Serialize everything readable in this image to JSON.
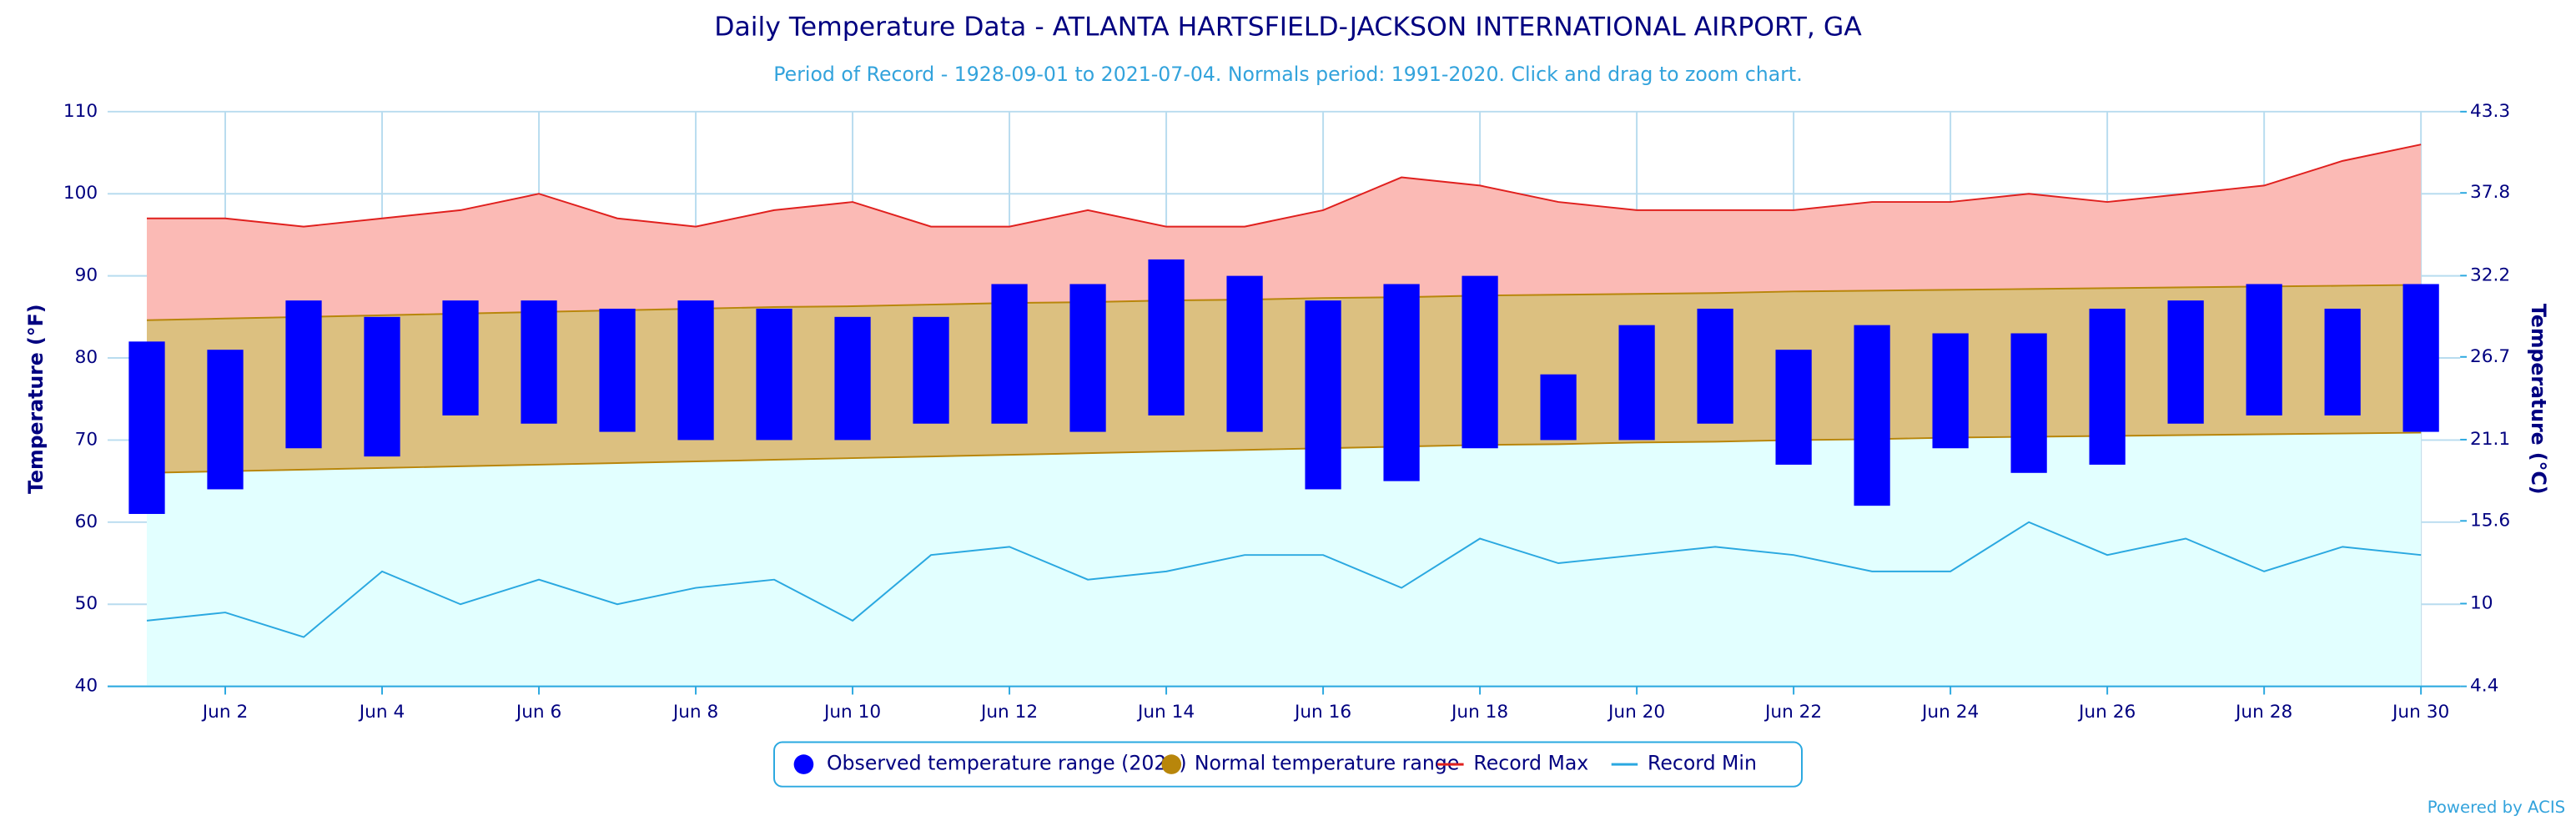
{
  "chart_data": {
    "type": "combo",
    "title": "Daily Temperature Data - ATLANTA HARTSFIELD-JACKSON INTERNATIONAL AIRPORT, GA",
    "subtitle": "Period of Record - 1928-09-01 to 2021-07-04. Normals period: 1991-2020. Click and drag to zoom chart.",
    "y_label": "Temperature (°F)",
    "y2_label": "Temperature (°C)",
    "credit": "Powered by ACIS",
    "grid": true,
    "categories": [
      null,
      "Jun 2",
      null,
      "Jun 4",
      null,
      "Jun 6",
      null,
      "Jun 8",
      null,
      "Jun 10",
      null,
      "Jun 12",
      null,
      "Jun 14",
      null,
      "Jun 16",
      null,
      "Jun 18",
      null,
      "Jun 20",
      null,
      "Jun 22",
      null,
      "Jun 24",
      null,
      "Jun 26",
      null,
      "Jun 28",
      null,
      "Jun 30"
    ],
    "ylim": [
      40,
      110
    ],
    "yticks": [
      40,
      50,
      60,
      70,
      80,
      90,
      100,
      110
    ],
    "y2lim": [
      4.4,
      43.3
    ],
    "y2ticks": [
      4.4,
      10,
      15.6,
      21.1,
      26.7,
      32.2,
      37.8,
      43.3
    ],
    "series": [
      {
        "name": "Record Max",
        "type": "line",
        "color": "#e0201e",
        "fill": "#fbbab5",
        "values": [
          97,
          97,
          96,
          97,
          98,
          100,
          97,
          96,
          98,
          99,
          96,
          96,
          98,
          96,
          96,
          98,
          102,
          101,
          99,
          98,
          98,
          98,
          99,
          99,
          100,
          99,
          100,
          101,
          104,
          106
        ]
      },
      {
        "name": "Normal temperature range",
        "type": "range_area",
        "color": "#b8860b",
        "fill": "#dcc080",
        "fill_below": "#e2ffff",
        "low": [
          66.0,
          66.2,
          66.4,
          66.6,
          66.8,
          67.0,
          67.2,
          67.4,
          67.6,
          67.8,
          68.0,
          68.2,
          68.4,
          68.6,
          68.8,
          69.0,
          69.2,
          69.4,
          69.5,
          69.7,
          69.8,
          70.0,
          70.1,
          70.3,
          70.4,
          70.5,
          70.6,
          70.7,
          70.8,
          70.9
        ],
        "high": [
          84.6,
          84.8,
          85.0,
          85.2,
          85.4,
          85.6,
          85.8,
          86.0,
          86.2,
          86.3,
          86.5,
          86.7,
          86.8,
          87.0,
          87.1,
          87.3,
          87.4,
          87.6,
          87.7,
          87.8,
          87.9,
          88.1,
          88.2,
          88.3,
          88.4,
          88.5,
          88.6,
          88.7,
          88.8,
          88.9
        ]
      },
      {
        "name": "Record Min",
        "type": "line",
        "color": "#2aa8e0",
        "values": [
          48,
          49,
          46,
          54,
          50,
          53,
          50,
          52,
          53,
          48,
          56,
          57,
          53,
          54,
          56,
          56,
          52,
          58,
          55,
          56,
          57,
          56,
          54,
          54,
          60,
          56,
          58,
          54,
          57,
          56
        ]
      },
      {
        "name": "Observed temperature range (2021)",
        "type": "range_bar",
        "color": "#0000ff",
        "low": [
          61,
          64,
          69,
          68,
          73,
          72,
          71,
          70,
          70,
          70,
          72,
          72,
          71,
          73,
          71,
          64,
          65,
          69,
          70,
          70,
          72,
          67,
          62,
          69,
          66,
          67,
          72,
          73,
          73,
          71
        ],
        "high": [
          82,
          81,
          87,
          85,
          87,
          87,
          86,
          87,
          86,
          85,
          85,
          89,
          89,
          92,
          90,
          87,
          89,
          90,
          78,
          84,
          86,
          81,
          84,
          83,
          83,
          86,
          87,
          89,
          86,
          89
        ]
      }
    ],
    "legend_order": [
      3,
      1,
      0,
      2
    ]
  }
}
